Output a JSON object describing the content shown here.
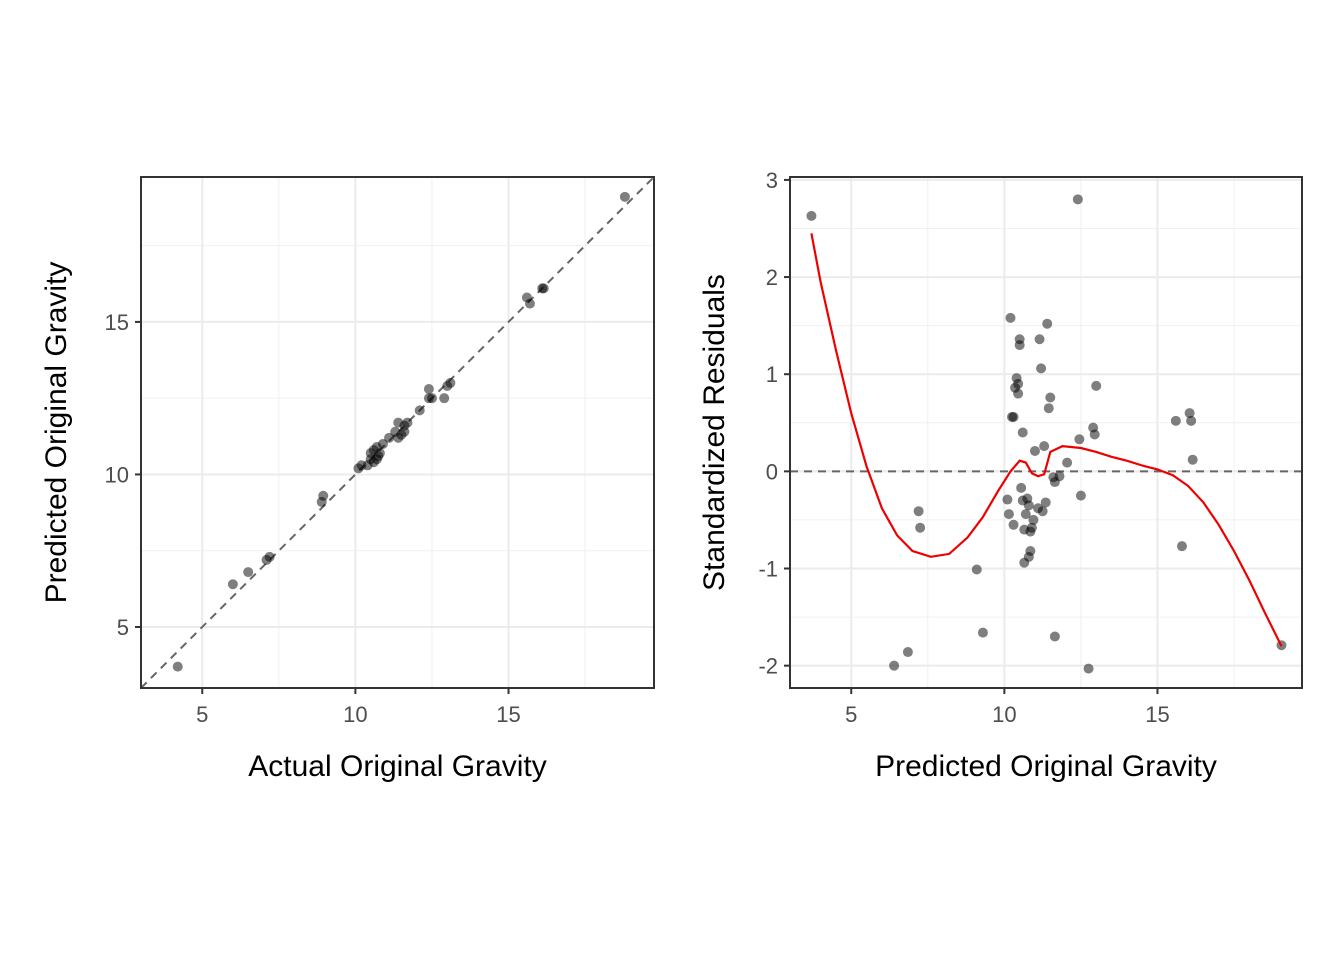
{
  "chart_data": [
    {
      "type": "scatter",
      "title": "",
      "xlabel": "Actual Original Gravity",
      "ylabel": "Predicted Original Gravity",
      "xlim": [
        3.0,
        19.75
      ],
      "ylim": [
        3.0,
        19.75
      ],
      "x_ticks": [
        {
          "value": 5,
          "label": "5"
        },
        {
          "value": 10,
          "label": "10"
        },
        {
          "value": 15,
          "label": "15"
        }
      ],
      "y_ticks": [
        {
          "value": 5,
          "label": "5"
        },
        {
          "value": 10,
          "label": "10"
        },
        {
          "value": 15,
          "label": "15"
        }
      ],
      "grid": true,
      "reference_line": {
        "type": "identity",
        "style": "dashed",
        "color": "#666666"
      },
      "point_color": "#000000",
      "point_opacity": 0.5,
      "points": [
        {
          "x": 4.2,
          "y": 3.7
        },
        {
          "x": 6.0,
          "y": 6.4
        },
        {
          "x": 6.5,
          "y": 6.8
        },
        {
          "x": 7.1,
          "y": 7.2
        },
        {
          "x": 7.2,
          "y": 7.3
        },
        {
          "x": 8.9,
          "y": 9.1
        },
        {
          "x": 8.95,
          "y": 9.3
        },
        {
          "x": 10.1,
          "y": 10.2
        },
        {
          "x": 10.2,
          "y": 10.3
        },
        {
          "x": 10.4,
          "y": 10.3
        },
        {
          "x": 10.5,
          "y": 10.5
        },
        {
          "x": 10.5,
          "y": 10.7
        },
        {
          "x": 10.6,
          "y": 10.4
        },
        {
          "x": 10.6,
          "y": 10.8
        },
        {
          "x": 10.7,
          "y": 10.5
        },
        {
          "x": 10.7,
          "y": 10.9
        },
        {
          "x": 10.75,
          "y": 10.6
        },
        {
          "x": 10.8,
          "y": 10.7
        },
        {
          "x": 10.9,
          "y": 11.0
        },
        {
          "x": 11.1,
          "y": 11.2
        },
        {
          "x": 11.3,
          "y": 11.4
        },
        {
          "x": 11.4,
          "y": 11.7
        },
        {
          "x": 11.4,
          "y": 11.2
        },
        {
          "x": 11.5,
          "y": 11.3
        },
        {
          "x": 11.6,
          "y": 11.4
        },
        {
          "x": 11.6,
          "y": 11.6
        },
        {
          "x": 11.7,
          "y": 11.7
        },
        {
          "x": 12.1,
          "y": 12.1
        },
        {
          "x": 12.4,
          "y": 12.5
        },
        {
          "x": 12.4,
          "y": 12.8
        },
        {
          "x": 12.5,
          "y": 12.5
        },
        {
          "x": 12.9,
          "y": 12.5
        },
        {
          "x": 13.0,
          "y": 12.9
        },
        {
          "x": 13.1,
          "y": 13.0
        },
        {
          "x": 15.6,
          "y": 15.8
        },
        {
          "x": 15.7,
          "y": 15.6
        },
        {
          "x": 16.1,
          "y": 16.1
        },
        {
          "x": 16.15,
          "y": 16.1
        },
        {
          "x": 18.8,
          "y": 19.1
        }
      ]
    },
    {
      "type": "scatter",
      "title": "",
      "xlabel": "Predicted Original Gravity",
      "ylabel": "Standardized Residuals",
      "xlim": [
        3.0,
        19.72
      ],
      "ylim": [
        -2.23,
        3.03
      ],
      "x_ticks": [
        {
          "value": 5,
          "label": "5"
        },
        {
          "value": 10,
          "label": "10"
        },
        {
          "value": 15,
          "label": "15"
        }
      ],
      "y_ticks": [
        {
          "value": -2,
          "label": "-2"
        },
        {
          "value": -1,
          "label": "-1"
        },
        {
          "value": 0,
          "label": "0"
        },
        {
          "value": 1,
          "label": "1"
        },
        {
          "value": 2,
          "label": "2"
        },
        {
          "value": 3,
          "label": "3"
        }
      ],
      "grid": true,
      "reference_line": {
        "type": "horizontal",
        "y": 0,
        "style": "dashed",
        "color": "#666666"
      },
      "point_color": "#000000",
      "point_opacity": 0.5,
      "smooth_color": "#ee0000",
      "points": [
        {
          "x": 3.7,
          "y": 2.63
        },
        {
          "x": 6.4,
          "y": -2.0
        },
        {
          "x": 6.85,
          "y": -1.86
        },
        {
          "x": 7.2,
          "y": -0.41
        },
        {
          "x": 7.25,
          "y": -0.58
        },
        {
          "x": 9.1,
          "y": -1.01
        },
        {
          "x": 9.3,
          "y": -1.66
        },
        {
          "x": 10.1,
          "y": -0.29
        },
        {
          "x": 10.15,
          "y": -0.44
        },
        {
          "x": 10.2,
          "y": 1.58
        },
        {
          "x": 10.25,
          "y": 0.56
        },
        {
          "x": 10.3,
          "y": 0.56
        },
        {
          "x": 10.3,
          "y": -0.55
        },
        {
          "x": 10.35,
          "y": 0.86
        },
        {
          "x": 10.4,
          "y": 0.96
        },
        {
          "x": 10.45,
          "y": 0.9
        },
        {
          "x": 10.45,
          "y": 0.8
        },
        {
          "x": 10.5,
          "y": 1.36
        },
        {
          "x": 10.5,
          "y": 1.3
        },
        {
          "x": 10.55,
          "y": -0.17
        },
        {
          "x": 10.6,
          "y": 0.4
        },
        {
          "x": 10.6,
          "y": -0.3
        },
        {
          "x": 10.65,
          "y": -0.6
        },
        {
          "x": 10.65,
          "y": -0.94
        },
        {
          "x": 10.7,
          "y": -0.44
        },
        {
          "x": 10.75,
          "y": -0.28
        },
        {
          "x": 10.8,
          "y": -0.35
        },
        {
          "x": 10.8,
          "y": -0.88
        },
        {
          "x": 10.85,
          "y": -0.82
        },
        {
          "x": 10.85,
          "y": -0.62
        },
        {
          "x": 10.9,
          "y": -0.58
        },
        {
          "x": 10.95,
          "y": -0.5
        },
        {
          "x": 11.0,
          "y": 0.21
        },
        {
          "x": 11.1,
          "y": -0.38
        },
        {
          "x": 11.15,
          "y": 1.36
        },
        {
          "x": 11.2,
          "y": 1.06
        },
        {
          "x": 11.25,
          "y": -0.41
        },
        {
          "x": 11.3,
          "y": 0.26
        },
        {
          "x": 11.35,
          "y": -0.32
        },
        {
          "x": 11.4,
          "y": 1.52
        },
        {
          "x": 11.45,
          "y": 0.65
        },
        {
          "x": 11.5,
          "y": 0.76
        },
        {
          "x": 11.6,
          "y": -0.06
        },
        {
          "x": 11.65,
          "y": -0.11
        },
        {
          "x": 11.65,
          "y": -1.7
        },
        {
          "x": 11.8,
          "y": -0.05
        },
        {
          "x": 12.05,
          "y": 0.09
        },
        {
          "x": 12.4,
          "y": 2.8
        },
        {
          "x": 12.45,
          "y": 0.33
        },
        {
          "x": 12.5,
          "y": -0.25
        },
        {
          "x": 12.75,
          "y": -2.03
        },
        {
          "x": 12.9,
          "y": 0.45
        },
        {
          "x": 12.95,
          "y": 0.38
        },
        {
          "x": 13.0,
          "y": 0.88
        },
        {
          "x": 15.6,
          "y": 0.52
        },
        {
          "x": 15.8,
          "y": -0.77
        },
        {
          "x": 16.05,
          "y": 0.6
        },
        {
          "x": 16.1,
          "y": 0.52
        },
        {
          "x": 16.15,
          "y": 0.12
        },
        {
          "x": 19.05,
          "y": -1.79
        }
      ],
      "smooth": [
        {
          "x": 3.7,
          "y": 2.45
        },
        {
          "x": 4.0,
          "y": 1.95
        },
        {
          "x": 4.5,
          "y": 1.25
        },
        {
          "x": 5.0,
          "y": 0.6
        },
        {
          "x": 5.5,
          "y": 0.05
        },
        {
          "x": 6.0,
          "y": -0.38
        },
        {
          "x": 6.5,
          "y": -0.66
        },
        {
          "x": 7.0,
          "y": -0.82
        },
        {
          "x": 7.6,
          "y": -0.88
        },
        {
          "x": 8.2,
          "y": -0.85
        },
        {
          "x": 8.8,
          "y": -0.68
        },
        {
          "x": 9.3,
          "y": -0.47
        },
        {
          "x": 9.8,
          "y": -0.2
        },
        {
          "x": 10.2,
          "y": 0.0
        },
        {
          "x": 10.5,
          "y": 0.11
        },
        {
          "x": 10.7,
          "y": 0.09
        },
        {
          "x": 10.9,
          "y": -0.02
        },
        {
          "x": 11.1,
          "y": -0.05
        },
        {
          "x": 11.3,
          "y": -0.03
        },
        {
          "x": 11.5,
          "y": 0.2
        },
        {
          "x": 11.9,
          "y": 0.26
        },
        {
          "x": 12.5,
          "y": 0.24
        },
        {
          "x": 13.0,
          "y": 0.2
        },
        {
          "x": 13.5,
          "y": 0.15
        },
        {
          "x": 14.0,
          "y": 0.11
        },
        {
          "x": 14.5,
          "y": 0.06
        },
        {
          "x": 15.0,
          "y": 0.02
        },
        {
          "x": 15.5,
          "y": -0.04
        },
        {
          "x": 16.0,
          "y": -0.15
        },
        {
          "x": 16.5,
          "y": -0.32
        },
        {
          "x": 17.0,
          "y": -0.55
        },
        {
          "x": 17.5,
          "y": -0.82
        },
        {
          "x": 18.0,
          "y": -1.12
        },
        {
          "x": 18.5,
          "y": -1.45
        },
        {
          "x": 19.05,
          "y": -1.8
        }
      ]
    }
  ]
}
